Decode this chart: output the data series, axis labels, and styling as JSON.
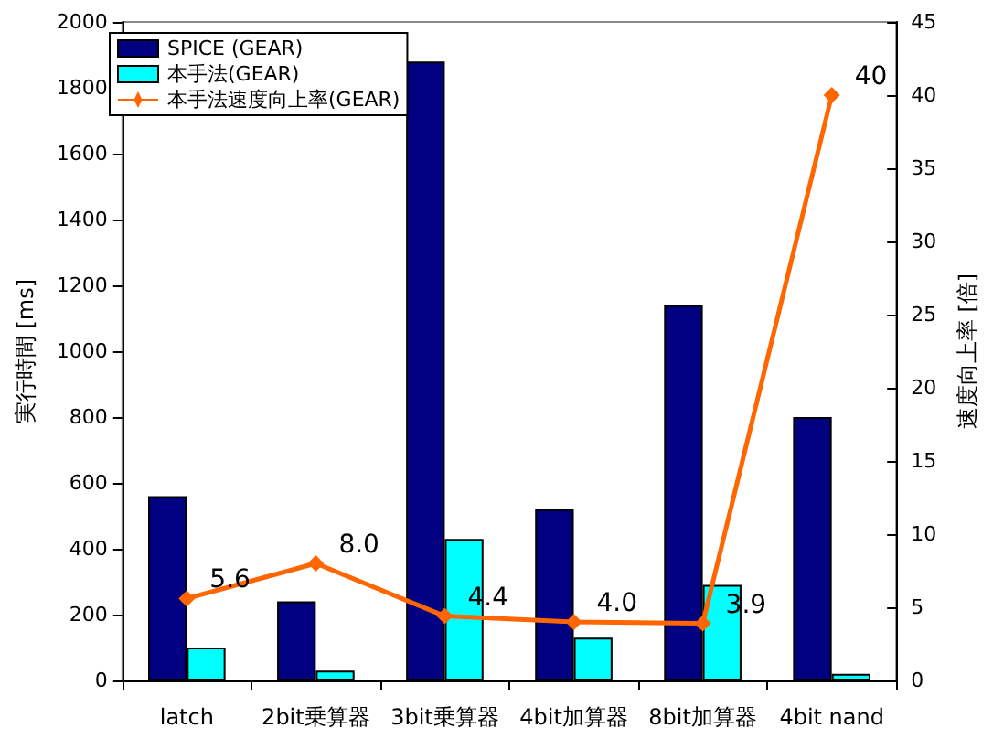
{
  "chart_data": {
    "type": "bar",
    "ylabel": "実行時間 [ms]",
    "y2label": "速度向上率 [倍]",
    "categories": [
      "latch",
      "2bit乗算器",
      "3bit乗算器",
      "4bit加算器",
      "8bit加算器",
      "4bit nand"
    ],
    "series": [
      {
        "name": "SPICE (GEAR)",
        "color": "#000080",
        "values": [
          560,
          240,
          1880,
          520,
          1140,
          800
        ]
      },
      {
        "name": "本手法(GEAR)",
        "color": "#00ffff",
        "values": [
          100,
          30,
          430,
          130,
          290,
          20
        ]
      },
      {
        "name": "本手法速度向上率(GEAR)",
        "type": "line",
        "axis": "y2",
        "color": "#ff6600",
        "marker": "diamond",
        "values": [
          5.6,
          8.0,
          4.4,
          4.0,
          3.9,
          40
        ],
        "value_labels": [
          "5.6",
          "8.0",
          "4.4",
          "4.0",
          "3.9",
          "40"
        ]
      }
    ],
    "ylim": [
      0,
      2000
    ],
    "yticks": [
      0,
      200,
      400,
      600,
      800,
      1000,
      1200,
      1400,
      1600,
      1800,
      2000
    ],
    "y2lim": [
      0,
      45
    ],
    "y2ticks": [
      0,
      5,
      10,
      15,
      20,
      25,
      30,
      35,
      40,
      45
    ],
    "grid": false,
    "legend": "top left"
  }
}
